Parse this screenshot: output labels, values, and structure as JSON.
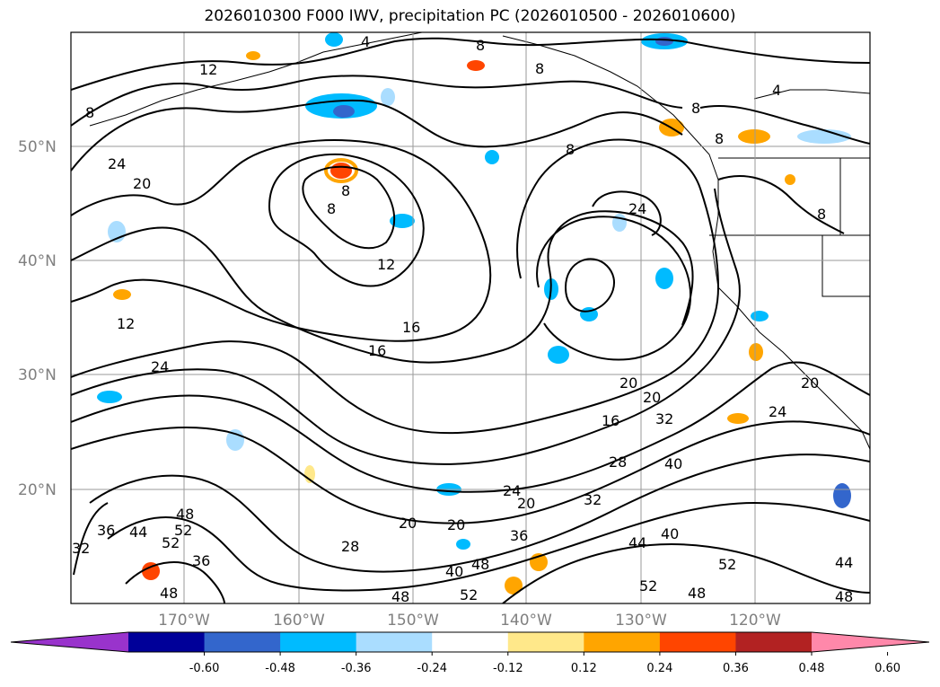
{
  "title": "2026010300 F000 IWV, precipitation PC (2026010500 - 2026010600)",
  "map": {
    "lat_labels": [
      "50°N",
      "40°N",
      "30°N",
      "20°N"
    ],
    "lon_labels": [
      "170°W",
      "160°W",
      "150°W",
      "140°W",
      "130°W",
      "120°W"
    ],
    "contour_labels": [
      "4",
      "8",
      "12",
      "16",
      "20",
      "24",
      "28",
      "32",
      "36",
      "40",
      "44",
      "48",
      "52"
    ]
  },
  "colorbar": {
    "ticks": [
      "-0.60",
      "-0.48",
      "-0.36",
      "-0.24",
      "-0.12",
      "0.12",
      "0.24",
      "0.36",
      "0.48",
      "0.60"
    ],
    "colors": [
      "#9933cc",
      "#000099",
      "#3366cc",
      "#00bbff",
      "#aaddff",
      "#ffffff",
      "#ffe88a",
      "#ffa500",
      "#ff4500",
      "#b22222",
      "#ff88aa"
    ]
  }
}
